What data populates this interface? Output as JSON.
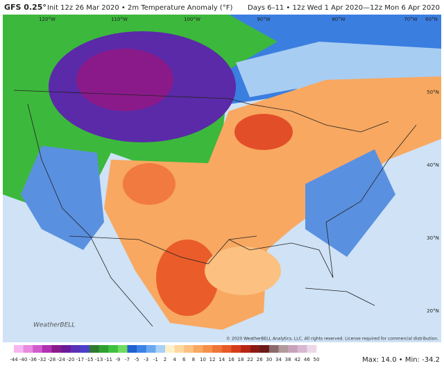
{
  "header": {
    "model": "GFS 0.25°",
    "title": "Init 12z 26 Mar 2020 • 2m Temperature Anomaly (°F)",
    "period": "Days 6–11 • 12z Wed 1 Apr 2020—12z Mon 6 Apr 2020"
  },
  "map": {
    "longitude_labels": [
      "120°W",
      "110°W",
      "100°W",
      "90°W",
      "80°W",
      "70°W",
      "60°N"
    ],
    "latitude_labels": [
      "50°N",
      "40°N",
      "30°N",
      "20°N"
    ],
    "logo": "WeatherBELL",
    "copyright": "© 2020 WeatherBELL Analytics, LLC. All rights reserved. License required for commercial distribution."
  },
  "colorbar": {
    "labels": [
      "-44",
      "-40",
      "-36",
      "-32",
      "-28",
      "-24",
      "-20",
      "-17",
      "-15",
      "-13",
      "-11",
      "-9",
      "-7",
      "-5",
      "-3",
      "-1",
      "2",
      "4",
      "6",
      "8",
      "10",
      "12",
      "14",
      "16",
      "18",
      "22",
      "26",
      "30",
      "34",
      "38",
      "42",
      "46",
      "50"
    ],
    "colors": [
      "#f7b6f0",
      "#e88ae0",
      "#d05ccc",
      "#b030b0",
      "#8a1a8a",
      "#6a1a9a",
      "#5a30b8",
      "#4a40c8",
      "#2f7a2f",
      "#2fa02f",
      "#40c040",
      "#70dc60",
      "#2060d0",
      "#3c82e6",
      "#6aa8f0",
      "#a8d0f8",
      "#fff0c8",
      "#ffd8a0",
      "#fcc080",
      "#f8a860",
      "#f49048",
      "#ee7438",
      "#e65a28",
      "#d43c1c",
      "#b82414",
      "#8c1a14",
      "#6a1a1a",
      "#8a6a6a",
      "#b09a9a",
      "#c8a0b8",
      "#d8b8d0",
      "#ecd8e8"
    ]
  },
  "footer": {
    "stats": "Max: 14.0 • Min: -34.2"
  }
}
